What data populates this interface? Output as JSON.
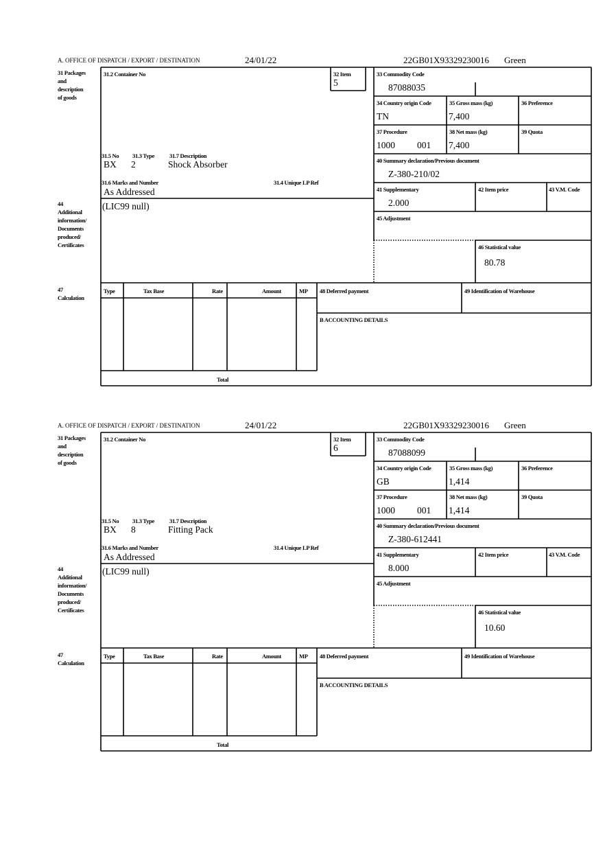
{
  "labels": {
    "office": "A. OFFICE OF DISPATCH / EXPORT / DESTINATION",
    "packages": [
      "31 Packages",
      "and",
      "description",
      "of goods"
    ],
    "container_no": "31.2 Container No",
    "item": "32 Item",
    "commodity_code": "33 Commodity Code",
    "country_origin": "34 Country origin Code",
    "gross_mass": "35 Gross mass (kg)",
    "preference": "36 Preference",
    "procedure": "37 Procedure",
    "net_mass": "38 Net mass (kg)",
    "quota": "39 Quota",
    "summary_declaration": "40 Summary declaration/Previous document",
    "supplementary": "41 Supplementary",
    "item_price": "42 Item price",
    "vm_code": "43 V.M. Code",
    "adjustment": "45 Adjustment",
    "statistical_value": "46 Statistical value",
    "no": "31.5 No",
    "type": "31.3 Type",
    "description": "31.7 Description",
    "marks": "31.6 Marks and Number",
    "unique_lp_ref": "31.4 Unique LP Ref",
    "additional_info": [
      "44",
      "Additional",
      "information/",
      "Documents",
      "produced/",
      "Certificates"
    ],
    "calculation": [
      "47",
      "Calculation"
    ],
    "calc_columns": [
      "Type",
      "Tax Base",
      "Rate",
      "Amount",
      "MP"
    ],
    "deferred_payment": "48 Deferred payment",
    "warehouse": "49 Identification of Warehouse",
    "accounting": "B ACCOUNTING DETAILS",
    "total": "Total"
  },
  "forms": [
    {
      "date": "24/01/22",
      "reference": "22GB01X93329230016",
      "route": "Green",
      "item": "5",
      "commodity_code": "87088035",
      "country_origin": "TN",
      "gross_mass": "7,400",
      "procedure": "1000",
      "procedure_add": "001",
      "net_mass": "7,400",
      "summary_declaration": "Z-380-210/02",
      "supplementary": "2.000",
      "statistical_value": "80.78",
      "pkg_kind": "BX",
      "pkg_count": "2",
      "description": "Shock Absorber",
      "marks": "As Addressed",
      "additional_info": "(LIC99 null)"
    },
    {
      "date": "24/01/22",
      "reference": "22GB01X93329230016",
      "route": "Green",
      "item": "6",
      "commodity_code": "87088099",
      "country_origin": "GB",
      "gross_mass": "1,414",
      "procedure": "1000",
      "procedure_add": "001",
      "net_mass": "1,414",
      "summary_declaration": "Z-380-612441",
      "supplementary": "8.000",
      "statistical_value": "10.60",
      "pkg_kind": "BX",
      "pkg_count": "8",
      "description": "Fitting Pack",
      "marks": "As Addressed",
      "additional_info": "(LIC99 null)"
    }
  ]
}
